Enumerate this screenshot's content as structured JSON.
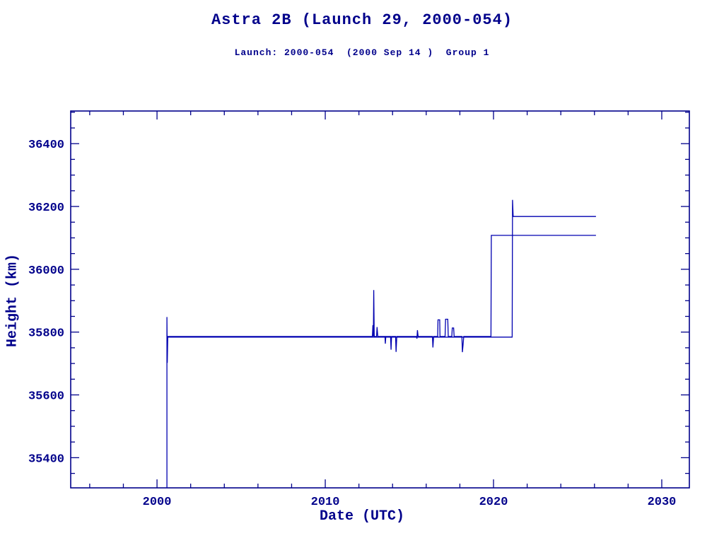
{
  "page": {
    "background": "#ffffff"
  },
  "chart_data": {
    "type": "line",
    "title": "Astra 2B (Launch 29, 2000-054)",
    "subtitle": "Launch: 2000-054  (2000 Sep 14 )  Group 1",
    "xlabel": "Date (UTC)",
    "ylabel": "Height (km)",
    "xlim": [
      1994.87,
      2031.64
    ],
    "ylim": [
      35304,
      36504
    ],
    "xticks": [
      2000,
      2010,
      2020,
      2030
    ],
    "yticks": [
      35400,
      35600,
      35800,
      36000,
      36200,
      36400
    ],
    "x_minor_step": 2,
    "y_minor_step": 50,
    "grid": false,
    "legend": "none",
    "axis_color": "#00008b",
    "text_color": "#00008b",
    "line_color": "#0000b0",
    "series": [
      {
        "name": "height-main",
        "points": [
          [
            2000.59,
            35304
          ],
          [
            2000.59,
            35848
          ],
          [
            2000.61,
            35702
          ],
          [
            2000.64,
            35786
          ],
          [
            2012.8,
            35786
          ],
          [
            2012.83,
            35822
          ],
          [
            2012.86,
            35786
          ],
          [
            2012.88,
            35934
          ],
          [
            2012.91,
            35786
          ],
          [
            2013.05,
            35786
          ],
          [
            2013.08,
            35816
          ],
          [
            2013.12,
            35786
          ],
          [
            2013.55,
            35786
          ],
          [
            2013.57,
            35763
          ],
          [
            2013.6,
            35786
          ],
          [
            2013.88,
            35786
          ],
          [
            2013.91,
            35744
          ],
          [
            2013.94,
            35786
          ],
          [
            2014.18,
            35786
          ],
          [
            2014.21,
            35737
          ],
          [
            2014.25,
            35786
          ],
          [
            2015.42,
            35786
          ],
          [
            2015.45,
            35779
          ],
          [
            2015.48,
            35806
          ],
          [
            2015.52,
            35786
          ],
          [
            2016.37,
            35786
          ],
          [
            2016.4,
            35751
          ],
          [
            2016.44,
            35786
          ],
          [
            2016.68,
            35786
          ],
          [
            2016.7,
            35839
          ],
          [
            2016.8,
            35839
          ],
          [
            2016.82,
            35786
          ],
          [
            2017.12,
            35786
          ],
          [
            2017.15,
            35841
          ],
          [
            2017.28,
            35841
          ],
          [
            2017.31,
            35786
          ],
          [
            2017.52,
            35786
          ],
          [
            2017.55,
            35813
          ],
          [
            2017.63,
            35813
          ],
          [
            2017.66,
            35786
          ],
          [
            2018.12,
            35786
          ],
          [
            2018.15,
            35736
          ],
          [
            2018.19,
            35758
          ],
          [
            2018.23,
            35786
          ],
          [
            2019.85,
            35786
          ],
          [
            2019.87,
            36108
          ],
          [
            2026.09,
            36108
          ]
        ]
      },
      {
        "name": "height-raised",
        "points": [
          [
            2000.64,
            35784
          ],
          [
            2021.11,
            35784
          ],
          [
            2021.13,
            36221
          ],
          [
            2021.17,
            36168
          ],
          [
            2026.09,
            36168
          ]
        ]
      }
    ]
  }
}
